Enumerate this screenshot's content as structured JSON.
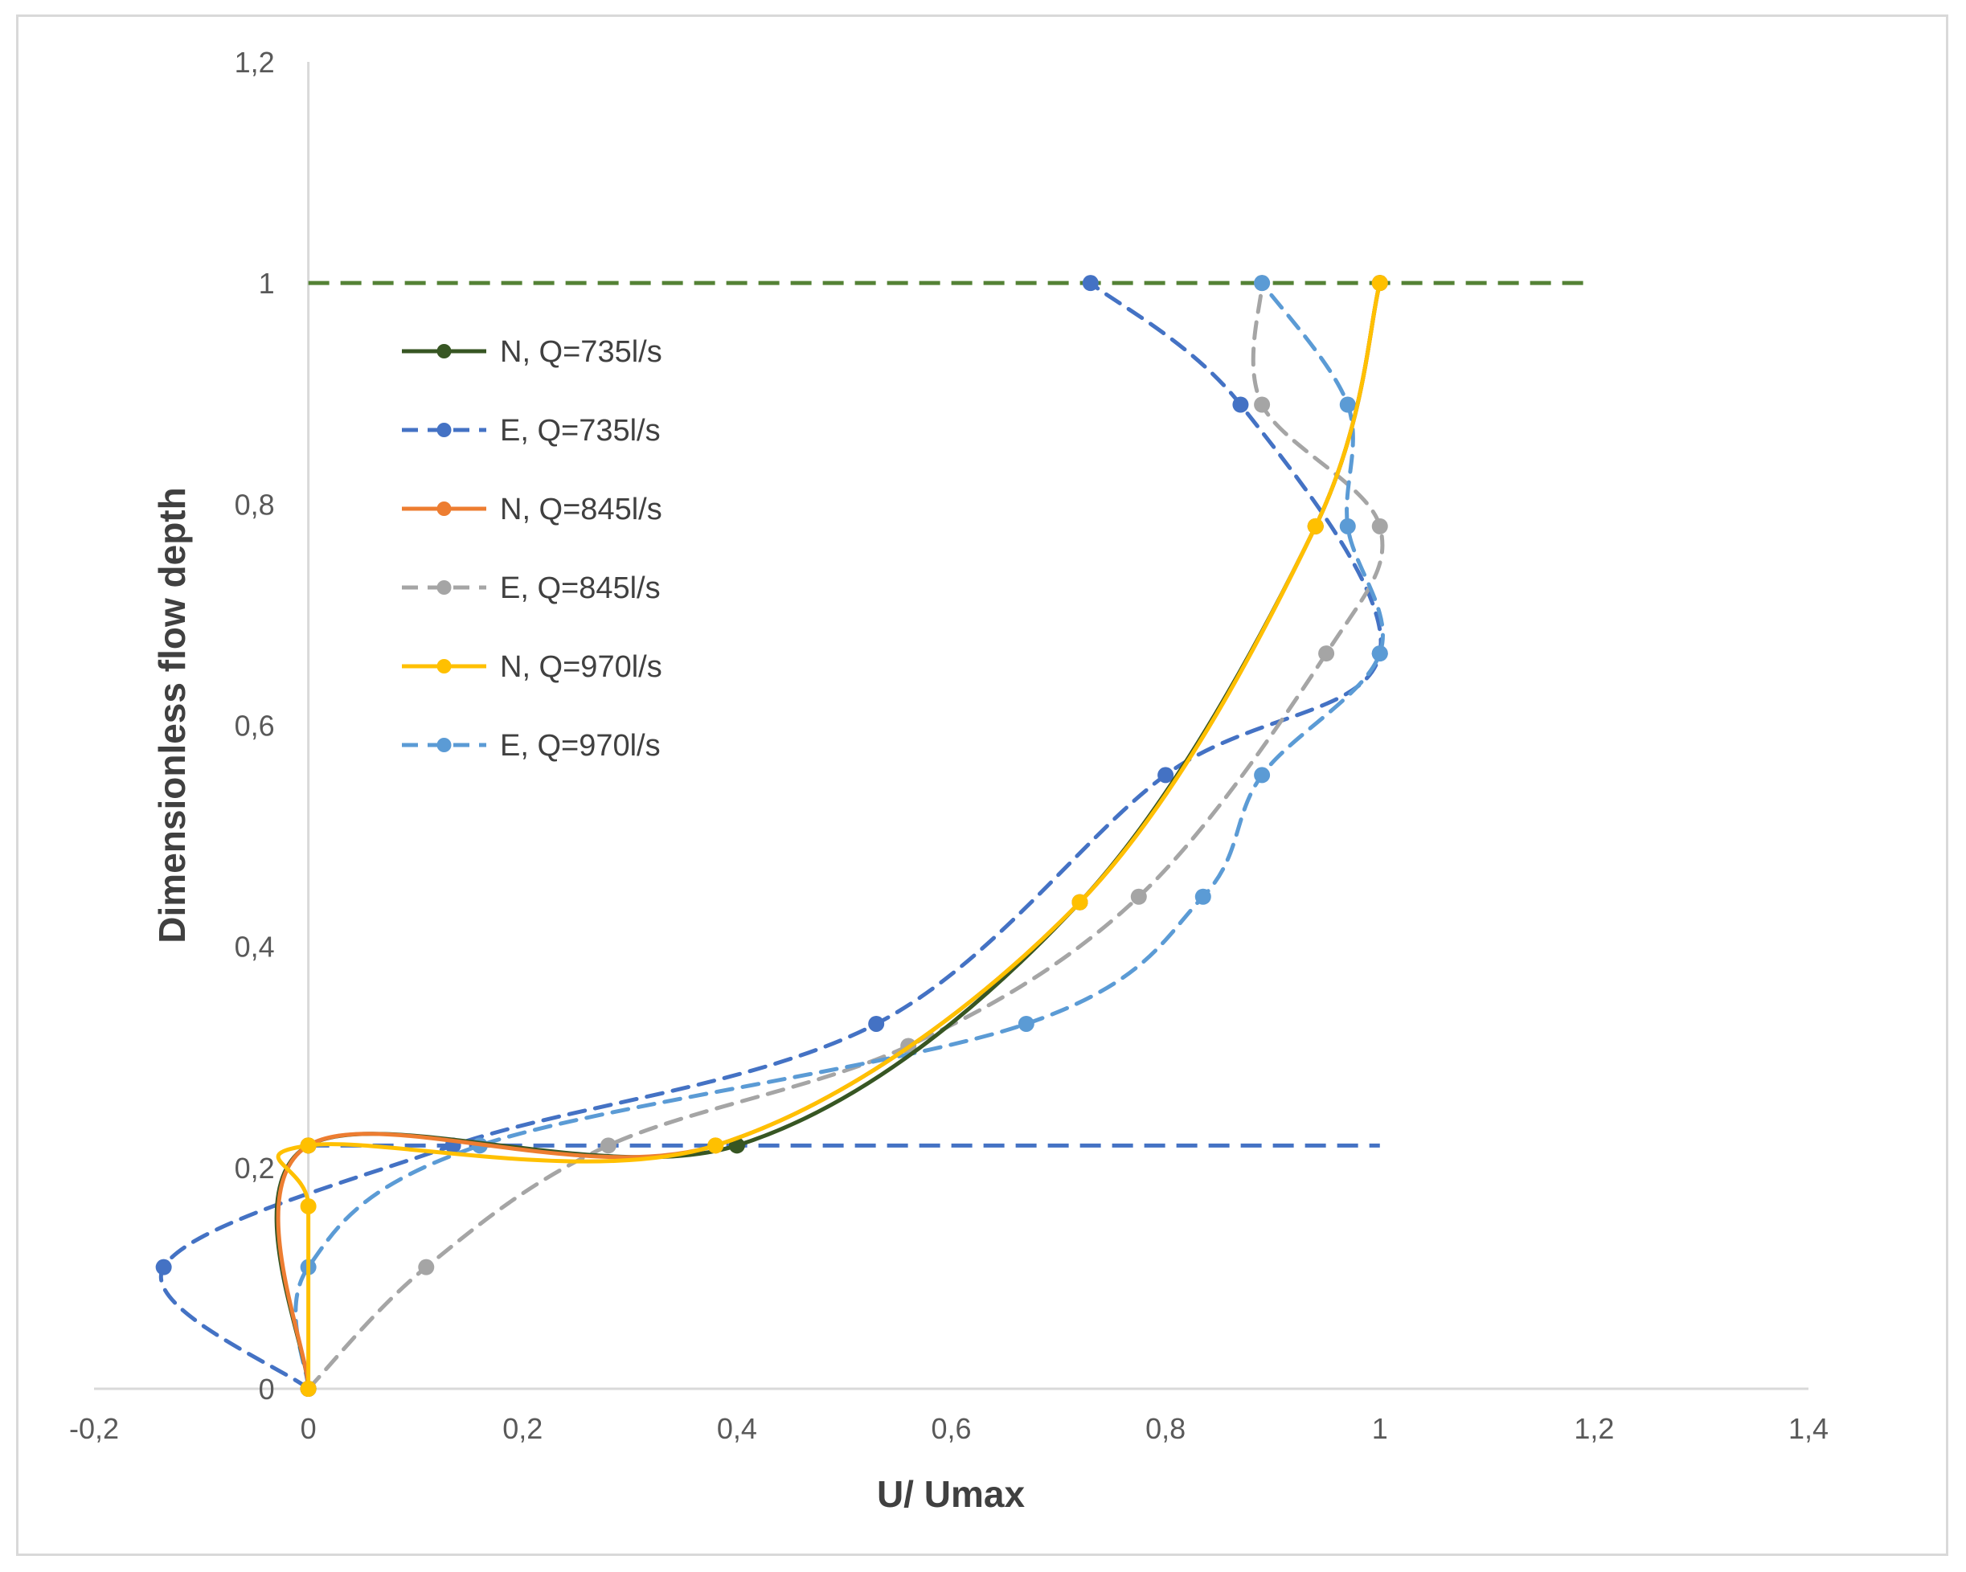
{
  "chart_data": {
    "type": "line",
    "title": "",
    "xlabel": "U/ Umax",
    "ylabel": "Dimensionless flow depth",
    "xlim": [
      -0.2,
      1.4
    ],
    "ylim": [
      0,
      1.2
    ],
    "x_ticks": [
      -0.2,
      0,
      0.2,
      0.4,
      0.6,
      0.8,
      1,
      1.2,
      1.4
    ],
    "y_ticks": [
      0,
      0.2,
      0.4,
      0.6,
      0.8,
      1,
      1.2
    ],
    "x_tick_labels": [
      "-0,2",
      "0",
      "0,2",
      "0,4",
      "0,6",
      "0,8",
      "1",
      "1,2",
      "1,4"
    ],
    "y_tick_labels": [
      "0",
      "0,2",
      "0,4",
      "0,6",
      "0,8",
      "1",
      "1,2"
    ],
    "legend_position": "upper-left",
    "series": [
      {
        "name": "N, Q=735l/s",
        "color": "#375623",
        "dash": false,
        "x": [
          0,
          0,
          0.4,
          0.72,
          0.94,
          1.0
        ],
        "y": [
          0,
          0.22,
          0.22,
          0.44,
          0.78,
          1.0
        ]
      },
      {
        "name": "E, Q=735l/s",
        "color": "#4472c4",
        "dash": true,
        "x": [
          0,
          -0.135,
          0.135,
          0.53,
          0.8,
          1.0,
          0.87,
          0.73
        ],
        "y": [
          0,
          0.11,
          0.22,
          0.33,
          0.555,
          0.665,
          0.89,
          1.0
        ]
      },
      {
        "name": "N, Q=845l/s",
        "color": "#ed7d31",
        "dash": false,
        "x": [
          0,
          0,
          0.38,
          0.72,
          0.94,
          1.0
        ],
        "y": [
          0,
          0.22,
          0.22,
          0.44,
          0.78,
          1.0
        ]
      },
      {
        "name": "E, Q=845l/s",
        "color": "#a5a5a5",
        "dash": true,
        "x": [
          0,
          0.11,
          0.28,
          0.56,
          0.775,
          0.95,
          1.0,
          0.89,
          0.89
        ],
        "y": [
          0,
          0.11,
          0.22,
          0.31,
          0.445,
          0.665,
          0.78,
          0.89,
          1.0
        ]
      },
      {
        "name": "N, Q=970l/s",
        "color": "#ffc000",
        "dash": false,
        "x": [
          0,
          0,
          0,
          0.38,
          0.72,
          0.94,
          1.0
        ],
        "y": [
          0,
          0.165,
          0.22,
          0.22,
          0.44,
          0.78,
          1.0
        ]
      },
      {
        "name": "E, Q=970l/s",
        "color": "#5b9bd5",
        "dash": true,
        "x": [
          0,
          0,
          0.16,
          0.67,
          0.835,
          0.89,
          1.0,
          0.97,
          0.97,
          0.89
        ],
        "y": [
          0,
          0.11,
          0.22,
          0.33,
          0.445,
          0.555,
          0.665,
          0.78,
          0.89,
          1.0
        ]
      }
    ],
    "reference_lines": [
      {
        "name": "surface line",
        "color": "#548235",
        "y": 1.0,
        "x": [
          0,
          1.2
        ]
      },
      {
        "name": "bed line",
        "color": "#4472c4",
        "y": 0.22,
        "x": [
          0,
          1.0
        ]
      }
    ]
  }
}
